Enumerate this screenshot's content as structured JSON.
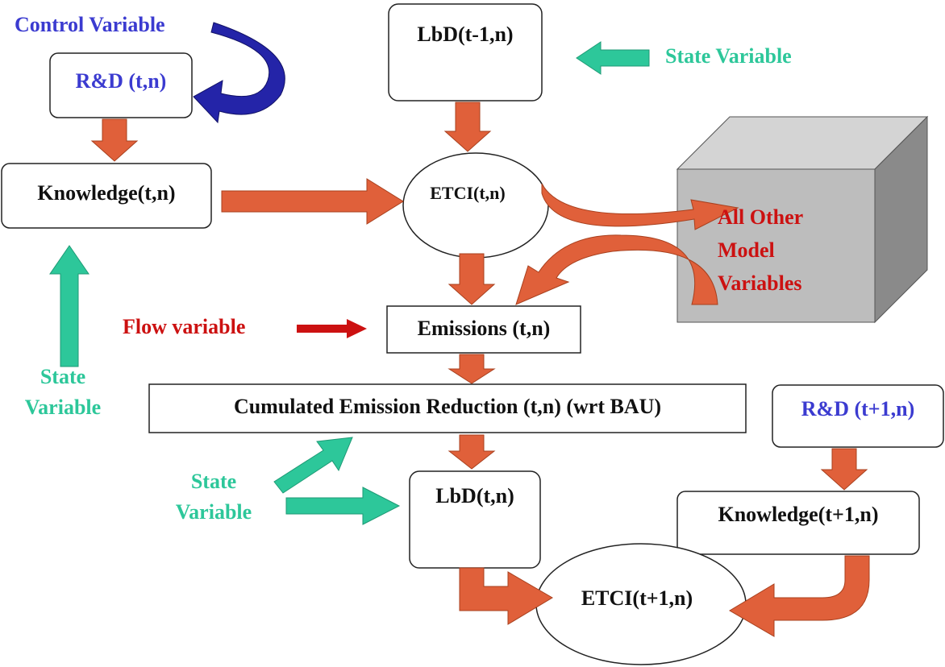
{
  "nodes": [
    {
      "label": "R&D (t,n)"
    },
    {
      "label": "Knowledge(t,n)"
    },
    {
      "label": "LbD(t-1,n)"
    },
    {
      "label": "ETCI(t,n)"
    },
    {
      "label": "Emissions (t,n)"
    },
    {
      "label": "Cumulated Emission Reduction (t,n) (wrt BAU)"
    },
    {
      "label": "R&D (t+1,n)"
    },
    {
      "label": "Knowledge(t+1,n)"
    },
    {
      "label": "LbD(t,n)"
    },
    {
      "label": "ETCI(t+1,n)"
    }
  ],
  "annotations": [
    {
      "lines": [
        "Control Variable"
      ]
    },
    {
      "lines": [
        "State Variable"
      ]
    },
    {
      "lines": [
        "All Other",
        "Model",
        "Variables"
      ]
    },
    {
      "lines": [
        "Flow variable"
      ]
    },
    {
      "lines": [
        "State",
        "Variable"
      ]
    },
    {
      "lines": [
        "State",
        "Variable"
      ]
    }
  ]
}
